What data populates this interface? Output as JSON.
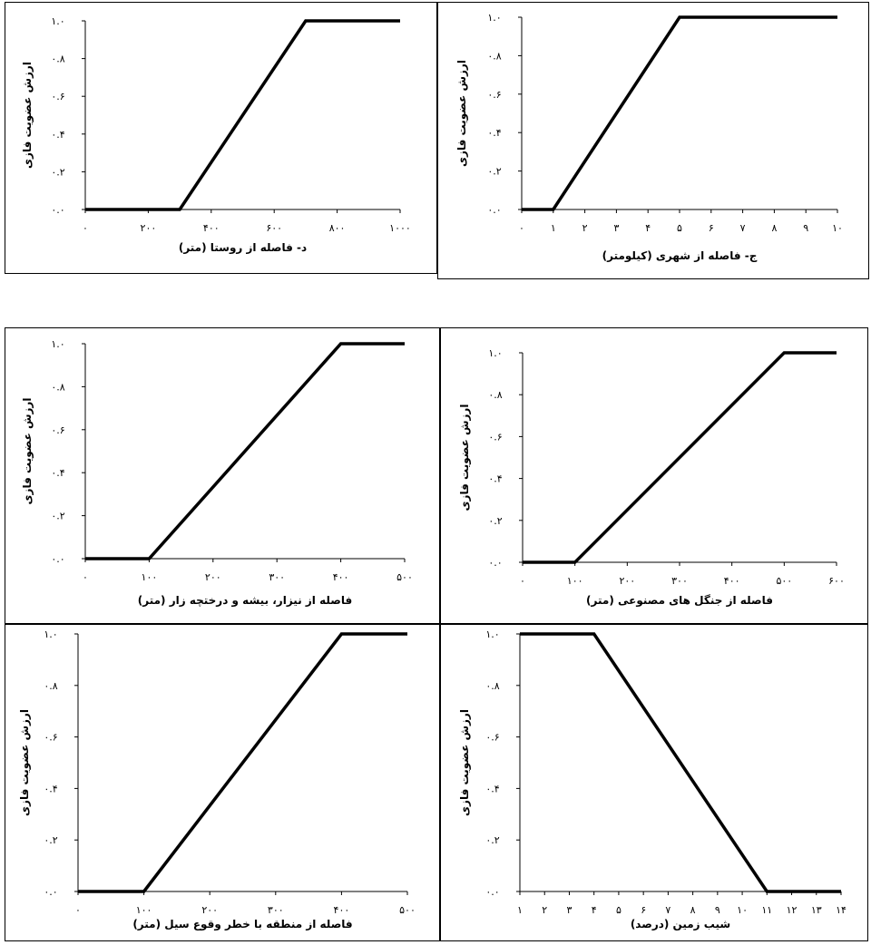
{
  "chart_data": [
    {
      "type": "line",
      "xlabel": "د- فاصله از روستا (متر)",
      "ylabel": "ارزش عضویت فازی",
      "x_ticks": [
        "۰",
        "۲۰۰",
        "۴۰۰",
        "۶۰۰",
        "۸۰۰",
        "۱۰۰۰"
      ],
      "y_ticks": [
        "۰.۰",
        "۰.۲",
        "۰.۴",
        "۰.۶",
        "۰.۸",
        "۱.۰"
      ],
      "xlim": [
        0,
        1000
      ],
      "ylim": [
        0,
        1
      ],
      "series": [
        {
          "x": [
            0,
            300,
            700,
            1000
          ],
          "y": [
            0,
            0,
            1,
            1
          ]
        }
      ]
    },
    {
      "type": "line",
      "xlabel": "ج- فاصله از شهری (کیلومتر)",
      "ylabel": "ارزش عضویت فازی",
      "x_ticks": [
        "۰",
        "۱",
        "۲",
        "۳",
        "۴",
        "۵",
        "۶",
        "۷",
        "۸",
        "۹",
        "۱۰"
      ],
      "y_ticks": [
        "۰.۰",
        "۰.۲",
        "۰.۴",
        "۰.۶",
        "۰.۸",
        "۱.۰"
      ],
      "xlim": [
        0,
        10
      ],
      "ylim": [
        0,
        1
      ],
      "series": [
        {
          "x": [
            0,
            1,
            5,
            10
          ],
          "y": [
            0,
            0,
            1,
            1
          ]
        }
      ]
    },
    {
      "type": "line",
      "xlabel": "فاصله از نیزار، بیشه و درختچه زار (متر)",
      "ylabel": "ارزش عضویت فازی",
      "x_ticks": [
        "۰",
        "۱۰۰",
        "۲۰۰",
        "۳۰۰",
        "۴۰۰",
        "۵۰۰"
      ],
      "y_ticks": [
        "۰.۰",
        "۰.۲",
        "۰.۴",
        "۰.۶",
        "۰.۸",
        "۱.۰"
      ],
      "xlim": [
        0,
        500
      ],
      "ylim": [
        0,
        1
      ],
      "series": [
        {
          "x": [
            0,
            100,
            400,
            500
          ],
          "y": [
            0,
            0,
            1,
            1
          ]
        }
      ]
    },
    {
      "type": "line",
      "xlabel": "فاصله از جنگل های مصنوعی (متر)",
      "ylabel": "ارزش عضویت فازی",
      "x_ticks": [
        "۰",
        "۱۰۰",
        "۲۰۰",
        "۳۰۰",
        "۴۰۰",
        "۵۰۰",
        "۶۰۰"
      ],
      "y_ticks": [
        "۰.۰",
        "۰.۲",
        "۰.۴",
        "۰.۶",
        "۰.۸",
        "۱.۰"
      ],
      "xlim": [
        0,
        600
      ],
      "ylim": [
        0,
        1
      ],
      "series": [
        {
          "x": [
            0,
            100,
            500,
            600
          ],
          "y": [
            0,
            0,
            1,
            1
          ]
        }
      ]
    },
    {
      "type": "line",
      "xlabel": "فاصله از منطقه با خطر وقوع سیل (متر)",
      "ylabel": "ارزش عضویت فازی",
      "x_ticks": [
        "۰",
        "۱۰۰",
        "۲۰۰",
        "۳۰۰",
        "۴۰۰",
        "۵۰۰"
      ],
      "y_ticks": [
        "۰.۰",
        "۰.۲",
        "۰.۴",
        "۰.۶",
        "۰.۸",
        "۱.۰"
      ],
      "xlim": [
        0,
        500
      ],
      "ylim": [
        0,
        1
      ],
      "series": [
        {
          "x": [
            0,
            100,
            400,
            500
          ],
          "y": [
            0,
            0,
            1,
            1
          ]
        }
      ]
    },
    {
      "type": "line",
      "xlabel": "شیب زمین (درصد)",
      "ylabel": "ارزش عضویت فازی",
      "x_ticks": [
        "۱",
        "۲",
        "۳",
        "۴",
        "۵",
        "۶",
        "۷",
        "۸",
        "۹",
        "۱۰",
        "۱۱",
        "۱۲",
        "۱۳",
        "۱۴"
      ],
      "y_ticks": [
        "۰.۰",
        "۰.۲",
        "۰.۴",
        "۰.۶",
        "۰.۸",
        "۱.۰"
      ],
      "xlim": [
        1,
        14
      ],
      "ylim": [
        0,
        1
      ],
      "series": [
        {
          "x": [
            1,
            4,
            11,
            14
          ],
          "y": [
            1,
            1,
            0,
            0
          ]
        }
      ]
    }
  ]
}
